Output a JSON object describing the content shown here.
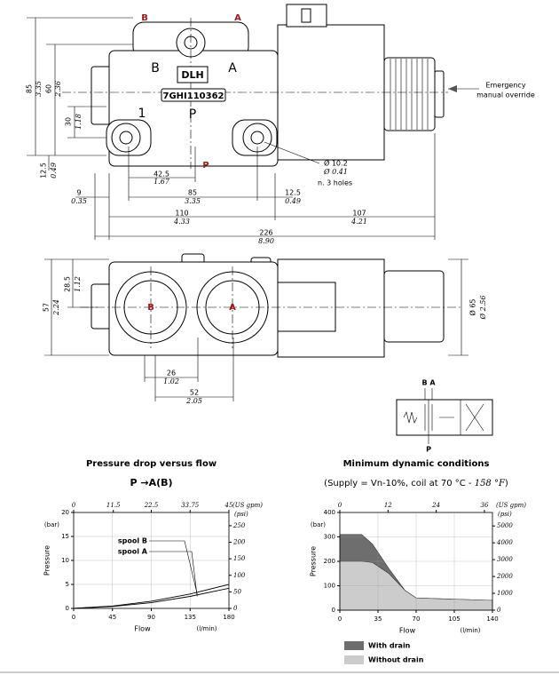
{
  "drawing": {
    "top_view": {
      "port_labels": [
        "B",
        "A"
      ],
      "body_labels": [
        "B",
        "A",
        "1",
        "P"
      ],
      "brand": "DLH",
      "code": "7GHI110362",
      "port_p": "P",
      "dimensions": [
        {
          "mm": "85",
          "in": "3.35"
        },
        {
          "mm": "60",
          "in": "2.36"
        },
        {
          "mm": "30",
          "in": "1.18"
        },
        {
          "mm": "12.5",
          "in": "0.49"
        },
        {
          "mm": "42.5",
          "in": "1.67"
        },
        {
          "mm": "85",
          "in": "3.35"
        },
        {
          "mm": "12.5",
          "in": "0.49"
        },
        {
          "mm": "9",
          "in": "0.35"
        },
        {
          "mm": "110",
          "in": "4.33"
        },
        {
          "mm": "107",
          "in": "4.21"
        },
        {
          "mm": "226",
          "in": "8.90"
        }
      ],
      "hole": [
        "Ø 10.2",
        "Ø 0.41",
        "n. 3 holes"
      ],
      "override": [
        "Emergency",
        "manual override"
      ]
    },
    "front_view": {
      "port_labels": [
        "B",
        "A"
      ],
      "dimensions": [
        {
          "mm": "57",
          "in": "2.24"
        },
        {
          "mm": "28.5",
          "in": "1.12"
        },
        {
          "mm": "Ø 65",
          "in": "Ø 2.56"
        },
        {
          "mm": "26",
          "in": "1.02"
        },
        {
          "mm": "52",
          "in": "2.05"
        }
      ]
    },
    "symbol": {
      "top": "B A",
      "bottom": "P"
    }
  },
  "chart_data": [
    {
      "type": "line",
      "title": "Pressure drop versus flow",
      "subtitle": "P →A(B)",
      "x_label": "Flow",
      "x_unit": "(l/min)",
      "y_label": "Pressure",
      "y_unit": "(bar)",
      "x2_unit": "(US gpm)",
      "y2_unit": "(psi)",
      "x": [
        0,
        45,
        90,
        135,
        180
      ],
      "series": [
        {
          "name": "spool B",
          "color": "#000000",
          "values": [
            0,
            0.5,
            1.5,
            3,
            5
          ]
        },
        {
          "name": "spool A",
          "color": "#000000",
          "values": [
            0,
            0.4,
            1.2,
            2.5,
            4.2
          ]
        }
      ],
      "xlim": [
        0,
        180
      ],
      "xticks": [
        0,
        45,
        90,
        135,
        180
      ],
      "ylim": [
        0,
        20
      ],
      "yticks": [
        0,
        5,
        10,
        15,
        20
      ],
      "x2lim": [
        0,
        45
      ],
      "x2ticks": [
        0,
        11.5,
        22.5,
        33.75,
        45
      ],
      "y2lim": [
        0,
        290
      ],
      "y2ticks": [
        0,
        50,
        100,
        150,
        200,
        250
      ],
      "grid": true
    },
    {
      "type": "area",
      "title": "Minimum dynamic conditions",
      "subtitle": [
        "(Supply = Vn-10%, coil at 70 °C - ",
        "158 °F",
        ")"
      ],
      "x_label": "Flow",
      "x_unit": "(l/min)",
      "y_label": "Pressure",
      "y_unit": "(bar)",
      "x2_unit": "(US gpm)",
      "y2_unit": "(psi)",
      "x": [
        0,
        20,
        30,
        45,
        60,
        70,
        105,
        140
      ],
      "series": [
        {
          "name": "With drain",
          "color": "#6e6e6e",
          "values": [
            310,
            310,
            270,
            170,
            80,
            50,
            45,
            40
          ]
        },
        {
          "name": "Without drain",
          "color": "#cccccc",
          "values": [
            200,
            200,
            195,
            150,
            80,
            50,
            45,
            40
          ]
        }
      ],
      "xlim": [
        0,
        140
      ],
      "xticks": [
        0,
        35,
        70,
        105,
        140
      ],
      "ylim": [
        0,
        400
      ],
      "yticks": [
        0,
        100,
        200,
        300,
        400
      ],
      "x2lim": [
        0,
        38
      ],
      "x2ticks": [
        0,
        12,
        24,
        36
      ],
      "y2lim": [
        0,
        5800
      ],
      "y2ticks": [
        0,
        1000,
        2000,
        3000,
        4000,
        5000
      ],
      "grid": true
    }
  ]
}
